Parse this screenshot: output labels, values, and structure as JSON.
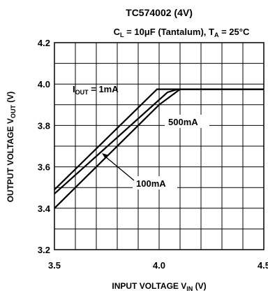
{
  "chart_data": {
    "type": "line",
    "title": "TC574002 (4V)",
    "subtitle": {
      "c_symbol": "C",
      "c_sub": "L",
      "c_rest": " = 10μF (Tantalum), T",
      "t_sub": "A",
      "t_rest": " = 25°C"
    },
    "xlabel": {
      "main": "INPUT VOLTAGE V",
      "sub": "IN",
      "unit": " (V)"
    },
    "ylabel": {
      "main": "OUTPUT VOLTAGE V",
      "sub": "OUT",
      "unit": " (V)"
    },
    "xlim": [
      3.5,
      4.5
    ],
    "ylim": [
      3.2,
      4.2
    ],
    "x_ticks": [
      "3.5",
      "4.0",
      "4.5"
    ],
    "y_ticks": [
      "3.2",
      "3.4",
      "3.6",
      "3.8",
      "4.0",
      "4.2"
    ],
    "grid": true,
    "series": [
      {
        "name": "I_OUT = 1mA",
        "label_main": "I",
        "label_sub": "OUT",
        "label_rest": " = 1mA",
        "x": [
          3.5,
          3.99,
          4.5
        ],
        "y": [
          3.49,
          3.975,
          3.975
        ]
      },
      {
        "name": "100mA",
        "label_main": "100mA",
        "x": [
          3.5,
          4.04,
          4.09,
          4.5
        ],
        "y": [
          3.47,
          3.96,
          3.975,
          3.975
        ]
      },
      {
        "name": "500mA",
        "label_main": "500mA",
        "x": [
          3.5,
          4.0,
          4.1,
          4.5
        ],
        "y": [
          3.4,
          3.9,
          3.975,
          3.975
        ]
      }
    ]
  }
}
